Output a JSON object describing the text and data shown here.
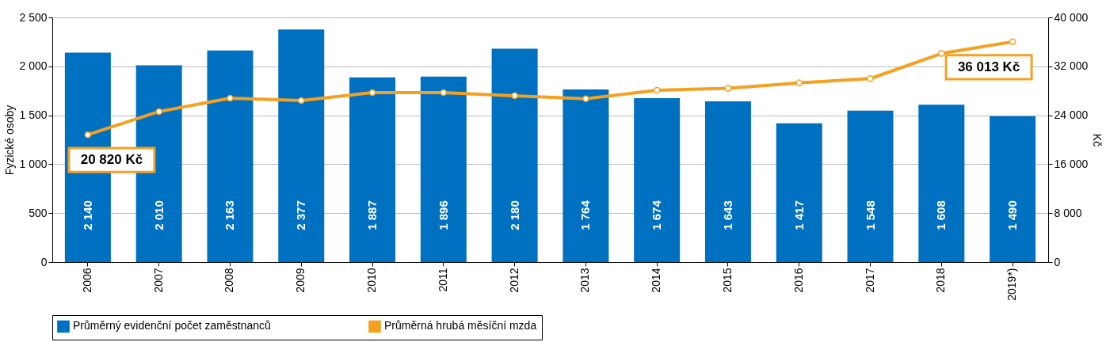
{
  "chart_data": {
    "type": "bar",
    "categories": [
      "2006",
      "2007",
      "2008",
      "2009",
      "2010",
      "2011",
      "2012",
      "2013",
      "2014",
      "2015",
      "2016",
      "2017",
      "2018",
      "2019*)"
    ],
    "series": [
      {
        "name": "Průměrný evidenční počet zaměstnanců",
        "color": "#0070c0",
        "values": [
          2140,
          2010,
          2163,
          2377,
          1887,
          1896,
          2180,
          1764,
          1674,
          1643,
          1417,
          1548,
          1608,
          1490
        ],
        "data_labels": true,
        "value_labels": [
          "2 140",
          "2 010",
          "2 163",
          "2 377",
          "1 887",
          "1 896",
          "2 180",
          "1 764",
          "1 674",
          "1 643",
          "1 417",
          "1 548",
          "1 608",
          "1 490"
        ]
      },
      {
        "name": "Průměrná hrubá měsíční mzda",
        "type": "line",
        "axis": "y2",
        "color": "#f5a020",
        "marker": "circle",
        "values": [
          20820,
          24600,
          26800,
          26400,
          27700,
          27700,
          27200,
          26700,
          28100,
          28400,
          29300,
          30000,
          34100,
          36013
        ],
        "value_labels": [
          "20 820 Kč",
          null,
          null,
          null,
          null,
          null,
          null,
          null,
          null,
          null,
          null,
          null,
          null,
          "36 013 Kč"
        ]
      }
    ],
    "ylabel": "Fyzické osoby",
    "y2label": "Kč",
    "ylim": [
      0,
      2500
    ],
    "yticks": [
      0,
      {
        "value": 500,
        "label": "500"
      },
      {
        "value": 1000,
        "label": "1 000"
      },
      {
        "value": 1500,
        "label": "1 500"
      },
      {
        "value": 2000,
        "label": "2 000"
      },
      {
        "value": 2500,
        "label": "2 500"
      }
    ],
    "y2lim": [
      0,
      40000
    ],
    "y2ticks": [
      0,
      {
        "value": 8000,
        "label": "8 000"
      },
      {
        "value": 16000,
        "label": "16 000"
      },
      {
        "value": 24000,
        "label": "24 000"
      },
      {
        "value": 32000,
        "label": "32 000"
      },
      {
        "value": 40000,
        "label": "40 000"
      }
    ],
    "grid": "y",
    "legend": "bottom"
  }
}
